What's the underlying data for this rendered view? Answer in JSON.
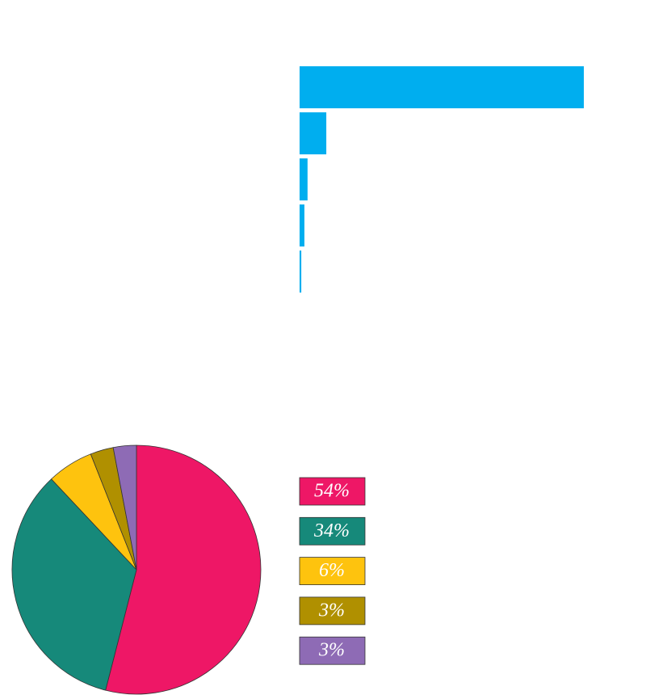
{
  "chart_data": [
    {
      "type": "hbar",
      "categories": [
        null,
        null,
        null,
        null,
        null
      ],
      "values": [
        100,
        9.4,
        2.8,
        1.7,
        0.6
      ],
      "color": "#00aeef",
      "xlim": [
        0,
        100
      ]
    },
    {
      "type": "pie",
      "values": [
        54,
        34,
        6,
        3,
        3
      ],
      "value_labels": [
        "54%",
        "34%",
        "6%",
        "3%",
        "3%"
      ],
      "colors": [
        "#ee1766",
        "#16897a",
        "#fec30e",
        "#b09000",
        "#8e6bb5"
      ]
    }
  ]
}
